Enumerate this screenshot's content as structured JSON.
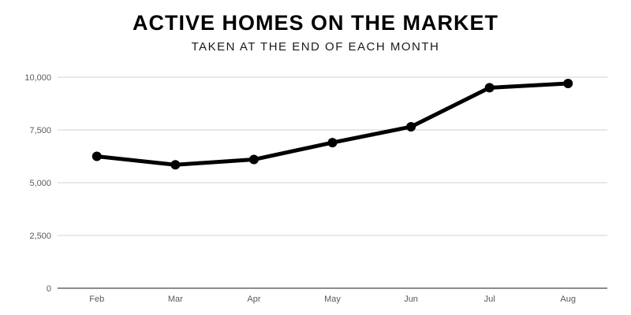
{
  "chart_data": {
    "type": "line",
    "title": "ACTIVE HOMES ON THE MARKET",
    "subtitle": "TAKEN AT THE END OF EACH MONTH",
    "categories": [
      "Feb",
      "Mar",
      "Apr",
      "May",
      "Jun",
      "Jul",
      "Aug"
    ],
    "values": [
      6250,
      5850,
      6100,
      6900,
      7650,
      9500,
      9700
    ],
    "xlabel": "",
    "ylabel": "",
    "ylim": [
      0,
      10000
    ],
    "yticks": [
      0,
      2500,
      5000,
      7500,
      10000
    ],
    "ytick_labels": [
      "0",
      "2,500",
      "5,000",
      "7,500",
      "10,000"
    ],
    "grid": true,
    "legend": false,
    "marker": "circle",
    "colors": {
      "line": "#000000",
      "point": "#000000",
      "gridline": "#e0e0e0",
      "axis": "#8c8c8c",
      "tick_label": "#5a5a5a",
      "title": "#000000"
    }
  }
}
